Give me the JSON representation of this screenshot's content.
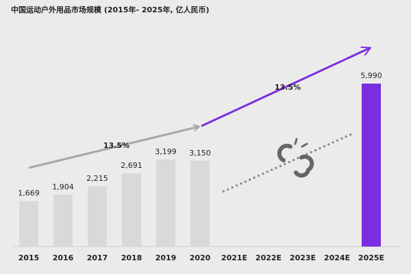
{
  "chart_data": {
    "type": "bar",
    "title": "中国运动户外用品市场规模 (2015年- 2025年, 亿人民币)",
    "categories": [
      "2015",
      "2016",
      "2017",
      "2018",
      "2019",
      "2020",
      "2021E",
      "2022E",
      "2023E",
      "2024E",
      "2025E"
    ],
    "values": [
      1669,
      1904,
      2215,
      2691,
      3199,
      3150,
      null,
      null,
      null,
      null,
      5990
    ],
    "value_labels": [
      "1,669",
      "1,904",
      "2,215",
      "2,691",
      "3,199",
      "3,150",
      null,
      null,
      null,
      null,
      "5,990"
    ],
    "colors": [
      "#d9d9d9",
      "#d9d9d9",
      "#d9d9d9",
      "#d9d9d9",
      "#d9d9d9",
      "#d9d9d9",
      "#d9d9d9",
      "#d9d9d9",
      "#d9d9d9",
      "#d9d9d9",
      "#7a2ee0"
    ],
    "ylim": [
      0,
      6000
    ],
    "annotations": [
      "13.5%",
      "13.5%"
    ]
  }
}
